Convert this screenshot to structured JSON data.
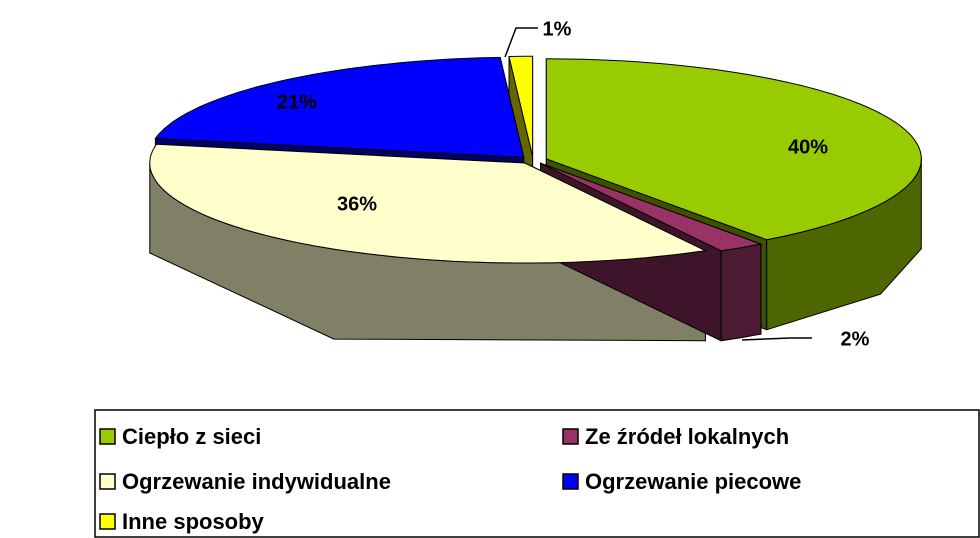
{
  "chart_data": {
    "type": "pie",
    "categories": [
      "Ciepło z sieci",
      "Ze źródeł lokalnych",
      "Ogrzewanie indywidualne",
      "Ogrzewanie piecowe",
      "Inne sposoby"
    ],
    "values": [
      40,
      2,
      36,
      21,
      1
    ],
    "value_labels": [
      "40%",
      "2%",
      "36%",
      "21%",
      "1%"
    ],
    "colors": [
      "#99cc00",
      "#993366",
      "#ffffcc",
      "#0000ff",
      "#ffff00"
    ],
    "legend": "bottom"
  }
}
